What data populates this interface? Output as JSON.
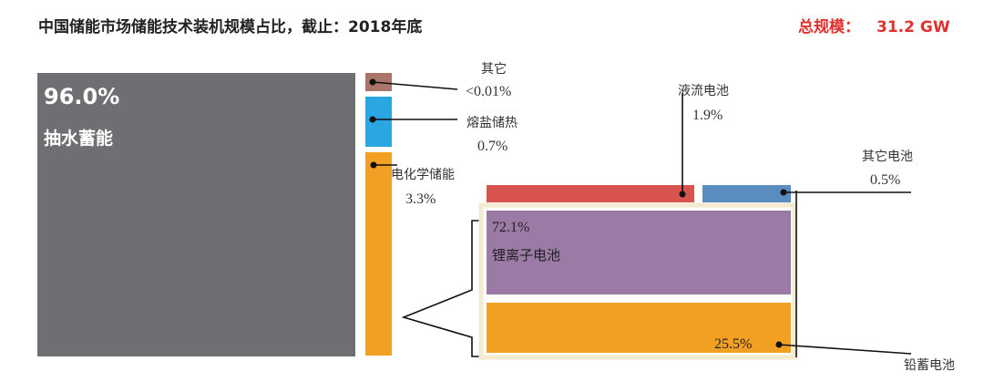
{
  "chart_data": {
    "type": "treemap",
    "title": "中国储能市场储能技术装机规模占比，截止：2018年底",
    "total_label": "总规模：",
    "total_value": "31.2 GW",
    "colors": {
      "pumped": "#6f6e72",
      "other": "#a9746a",
      "molten": "#2aa6e3",
      "electro": "#f2a024",
      "flow": "#d9534f",
      "other_battery": "#5b8cc0",
      "li_ion": "#9c7aa6",
      "lead": "#f2a024",
      "panel_border": "#f3ead0"
    },
    "segments": [
      {
        "key": "pumped",
        "name": "抽水蓄能",
        "value": "96.0%"
      },
      {
        "key": "other",
        "name": "其它",
        "value": "<0.01%"
      },
      {
        "key": "molten",
        "name": "熔盐储热",
        "value": "0.7%"
      },
      {
        "key": "electro",
        "name": "电化学储能",
        "value": "3.3%"
      }
    ],
    "electrochemical_breakdown": [
      {
        "key": "li_ion",
        "name": "锂离子电池",
        "value": "72.1%"
      },
      {
        "key": "lead",
        "name": "铅蓄电池",
        "value": "25.5%"
      },
      {
        "key": "flow",
        "name": "液流电池",
        "value": "1.9%"
      },
      {
        "key": "other_battery",
        "name": "其它电池",
        "value": "0.5%"
      }
    ]
  }
}
